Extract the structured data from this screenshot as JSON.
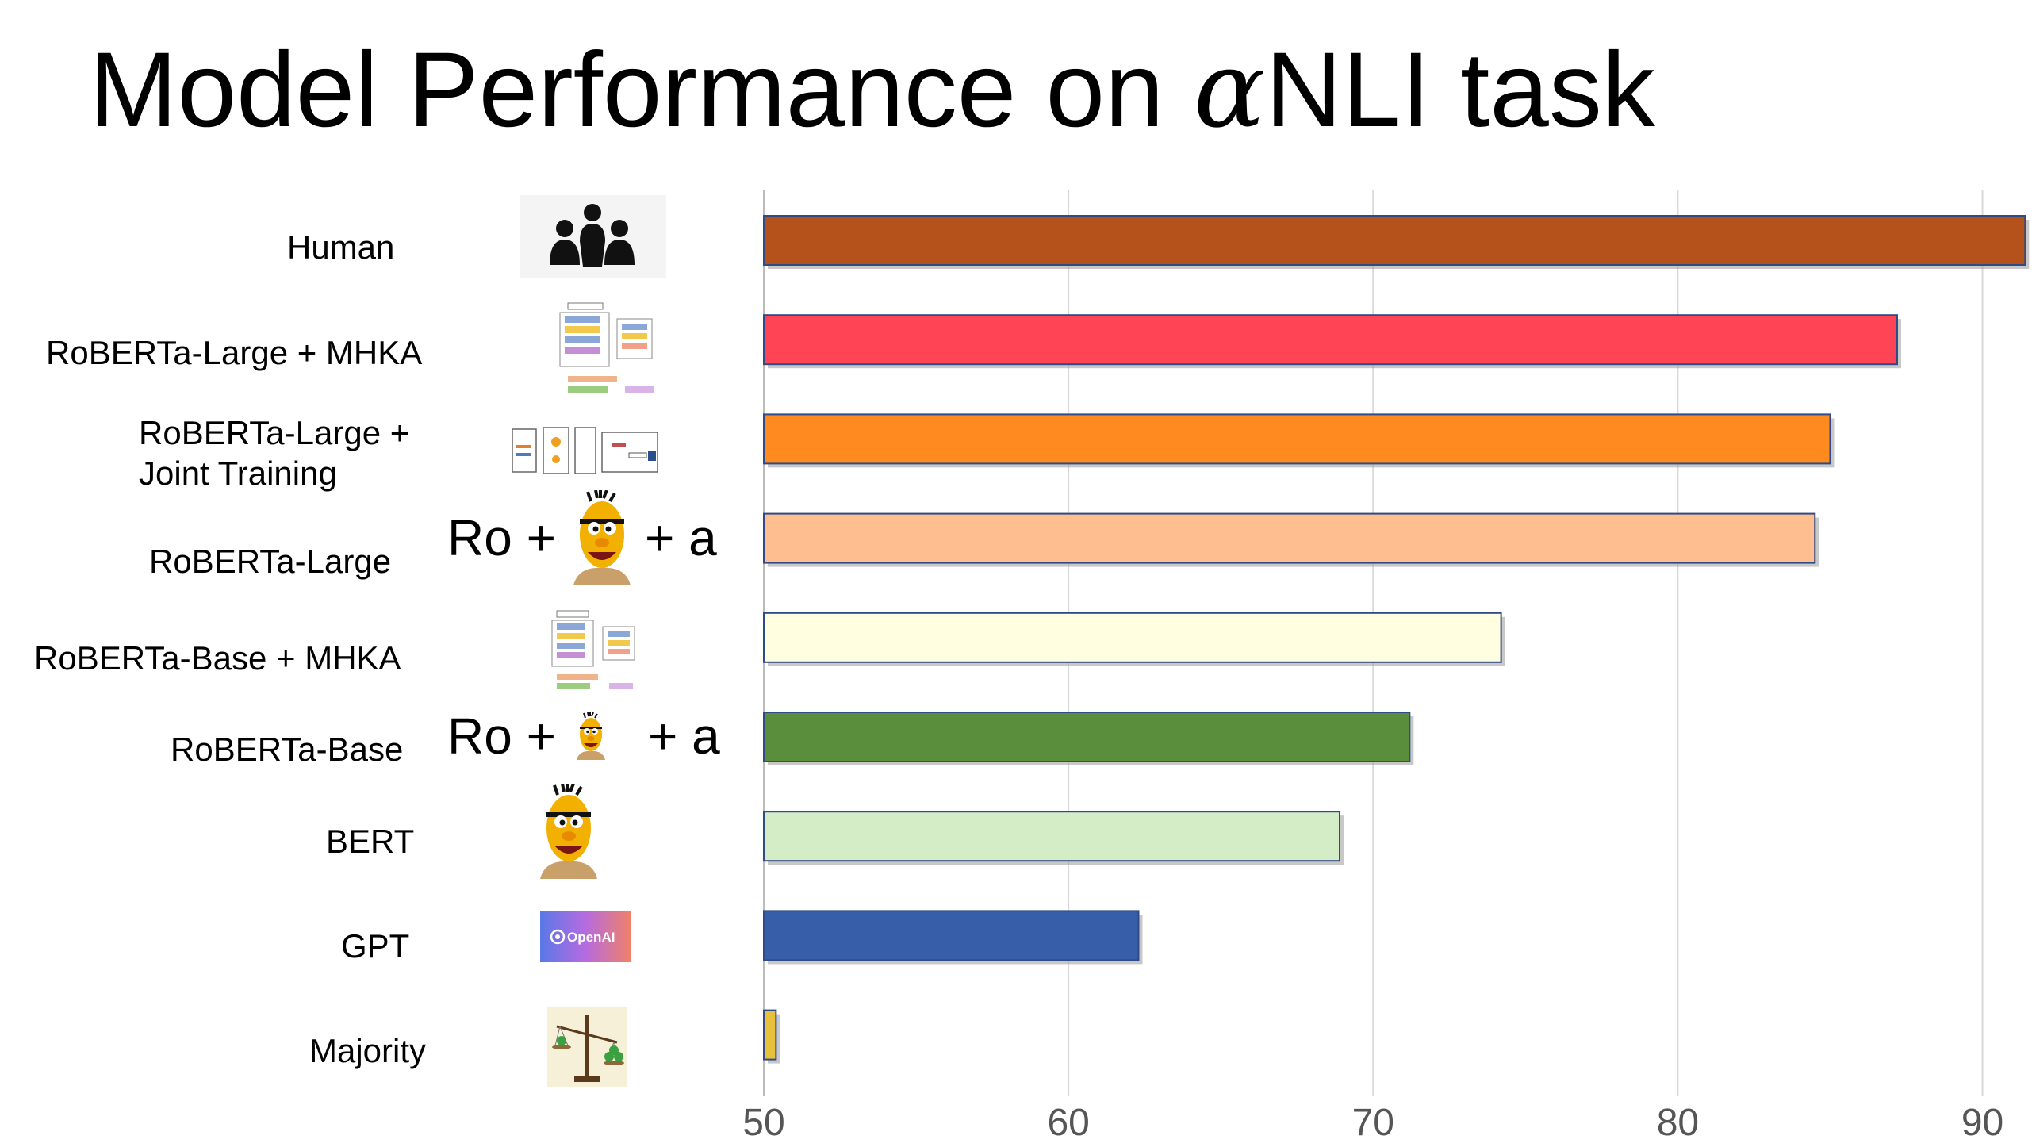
{
  "slide": {
    "title_prefix": "Model Performance on ",
    "title_symbol": "α",
    "title_suffix": "NLI task"
  },
  "formulas": {
    "large": {
      "left": "Ro +",
      "right": "+ a"
    },
    "base": {
      "left": "Ro +",
      "right": "+ a"
    }
  },
  "icons": {
    "human": "people-group-icon",
    "mhka_large": "architecture-diagram-thumbnail",
    "joint": "joint-training-diagram-thumbnail",
    "bert_large": "bert-muppet-icon",
    "mhka_base": "architecture-diagram-thumbnail",
    "bert_base": "bert-muppet-icon",
    "bert": "bert-muppet-icon",
    "gpt": "openai-logo",
    "openai_text": "OpenAI",
    "majority": "balance-scale-icon"
  },
  "chart_data": {
    "type": "bar",
    "orientation": "horizontal",
    "categories": [
      "Human",
      "RoBERTa-Large + MHKA",
      "RoBERTa-Large + Joint Training",
      "RoBERTa-Large",
      "RoBERTa-Base + MHKA",
      "RoBERTa-Base",
      "BERT",
      "GPT",
      "Majority"
    ],
    "values": [
      91.4,
      87.2,
      85.0,
      84.5,
      74.2,
      71.2,
      68.9,
      62.3,
      50.4
    ],
    "colors": [
      "#b5521b",
      "#ff4455",
      "#ff8a20",
      "#ffbe90",
      "#fffee0",
      "#5b8e3c",
      "#d4edc7",
      "#375ea8",
      "#e7c13b"
    ],
    "xlim": [
      50,
      91.6
    ],
    "xticks": [
      "50",
      "60",
      "70",
      "80",
      "90"
    ],
    "grid": true,
    "xlabel": "",
    "ylabel": ""
  }
}
